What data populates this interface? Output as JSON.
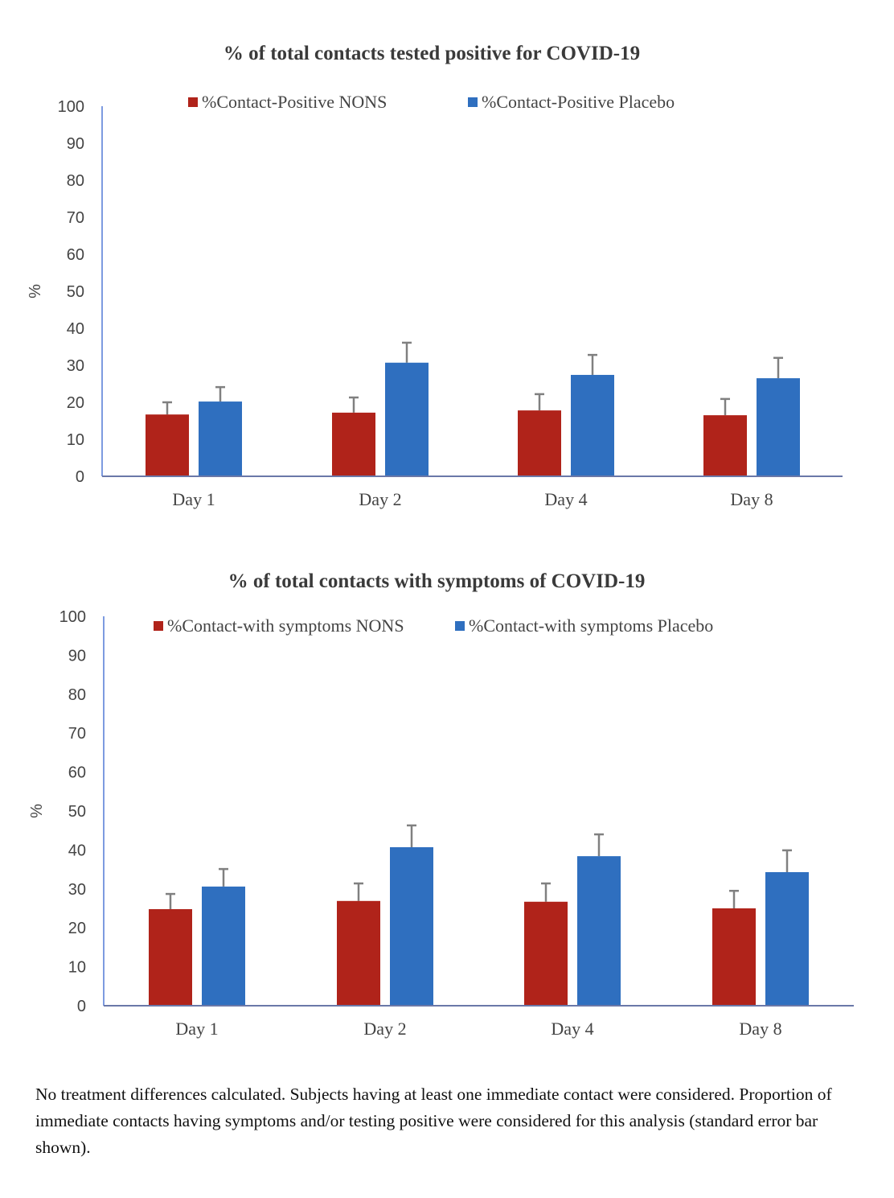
{
  "chart_data": [
    {
      "type": "bar",
      "title": "% of total contacts tested positive for COVID-19",
      "ylabel": "%",
      "xlabel": "",
      "ylim": [
        0,
        100
      ],
      "yticks": [
        "0",
        "10",
        "20",
        "30",
        "40",
        "50",
        "60",
        "70",
        "80",
        "90",
        "100"
      ],
      "categories": [
        "Day 1",
        "Day 2",
        "Day 4",
        "Day 8"
      ],
      "legend_position": "top",
      "grid": false,
      "error_bars": "standard error",
      "series": [
        {
          "name": "%Contact-Positive NONS",
          "color": "#b0231a",
          "values": [
            16.7,
            17.2,
            17.8,
            16.5
          ],
          "error": [
            3.3,
            4.1,
            4.4,
            4.4
          ]
        },
        {
          "name": "%Contact-Positive Placebo",
          "color": "#2f6fbf",
          "values": [
            20.2,
            30.7,
            27.4,
            26.5
          ],
          "error": [
            3.9,
            5.4,
            5.4,
            5.5
          ]
        }
      ]
    },
    {
      "type": "bar",
      "title": "% of total contacts with symptoms of COVID-19",
      "ylabel": "%",
      "xlabel": "",
      "ylim": [
        0,
        100
      ],
      "yticks": [
        "0",
        "10",
        "20",
        "30",
        "40",
        "50",
        "60",
        "70",
        "80",
        "90",
        "100"
      ],
      "categories": [
        "Day 1",
        "Day 2",
        "Day 4",
        "Day 8"
      ],
      "legend_position": "top",
      "grid": false,
      "error_bars": "standard error",
      "series": [
        {
          "name": "%Contact-with symptoms NONS",
          "color": "#b0231a",
          "values": [
            24.8,
            26.9,
            26.7,
            25.0
          ],
          "error": [
            3.9,
            4.5,
            4.7,
            4.5
          ]
        },
        {
          "name": "%Contact-with symptoms Placebo",
          "color": "#2f6fbf",
          "values": [
            30.6,
            40.7,
            38.4,
            34.3
          ],
          "error": [
            4.5,
            5.6,
            5.6,
            5.6
          ]
        }
      ]
    }
  ],
  "caption": "No treatment differences calculated. Subjects having at least one immediate contact were considered. Proportion of immediate contacts having symptoms and/or testing positive were considered for this analysis (standard error bar shown)."
}
